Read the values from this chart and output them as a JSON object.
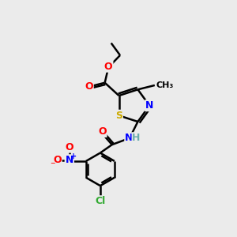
{
  "background_color": "#ebebeb",
  "atom_colors": {
    "C": "#000000",
    "H": "#6aacac",
    "O": "#ff0000",
    "N": "#0000ff",
    "S": "#ccaa00",
    "Cl": "#33aa33"
  },
  "bond_color": "#000000",
  "bond_lw": 1.8,
  "font_size": 9
}
